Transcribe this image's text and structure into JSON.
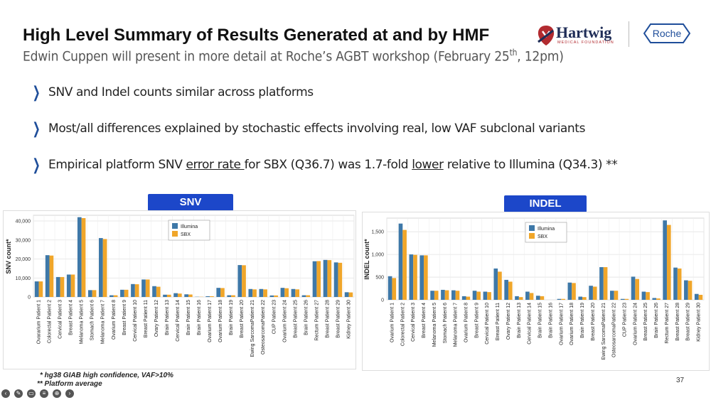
{
  "header": {
    "title": "High Level Summary of Results Generated at and by HMF",
    "subtitle_pre": "Edwin Cuppen will present in more detail at Roche’s AGBT workshop (February 25",
    "subtitle_sup": "th",
    "subtitle_post": ", 12pm)",
    "hartwig_name": "Hartwig",
    "hartwig_sub": "MEDICAL FOUNDATION",
    "roche_name": "Roche"
  },
  "bullets": {
    "b1": "SNV and Indel counts similar across platforms",
    "b2": "Most/all differences explained by stochastic effects involving real, low VAF subclonal variants",
    "b3_a": "Empirical platform SNV ",
    "b3_u1": "error rate ",
    "b3_b": "for SBX (Q36.7) was 1.7-fold ",
    "b3_u2": "lower",
    "b3_c": " relative to Illumina (Q34.3) **"
  },
  "footnotes": {
    "f1": "* hg38 GIAB high confidence, VAF>10%",
    "f2": "** Platform average"
  },
  "page_number": "37",
  "colors": {
    "illumina": "#3e78a8",
    "sbx": "#f0a62a",
    "badge": "#1c47c9"
  },
  "chart_data": [
    {
      "type": "bar",
      "title": "SNV",
      "ylabel": "SNV count*",
      "ylim": [
        0,
        43000
      ],
      "yticks": [
        "0",
        "10,000",
        "20,000",
        "30,000",
        "40,000"
      ],
      "ytick_values": [
        0,
        10000,
        20000,
        30000,
        40000
      ],
      "categories": [
        "Ovararium Patient 1",
        "Colorectal Patient 2",
        "Cervical Patient 3",
        "Breast Patient 4",
        "Melanoma Patient 5",
        "Stomach Patient 6",
        "Melanoma Patient 7",
        "Ovarium Patient 8",
        "Breast Patient 9",
        "Cervical Patient 10",
        "Breast Patient 11",
        "Ovary Patient 12",
        "Brain Patient 13",
        "Cervical Patient 14",
        "Brain Patient 15",
        "Brain Patient 16",
        "Ovarium Patient 17",
        "Ovarium Patient 18",
        "Brain Patient 19",
        "Breast Patient 20",
        "Ewing SarcomaPatient 21",
        "OsteosarcomaPatient 22",
        "CUP Patient 23",
        "Ovarium Patient 24",
        "Breast Patient 25",
        "Brain Patient 26",
        "Rectum Patient 27",
        "Breast Patient 28",
        "Breast Patient 29",
        "Kidney Patient 30"
      ],
      "legend": [
        "Illumina",
        "SBX"
      ],
      "legend_position": "top-right",
      "grid": true,
      "series": [
        {
          "name": "Illumina",
          "values": [
            8200,
            22000,
            10500,
            11800,
            42000,
            3600,
            31000,
            900,
            3800,
            6800,
            9200,
            5700,
            1200,
            2000,
            1400,
            100,
            400,
            4800,
            900,
            16800,
            4200,
            4200,
            800,
            4800,
            4200,
            900,
            18800,
            19500,
            18200,
            2500
          ]
        },
        {
          "name": "SBX",
          "values": [
            8200,
            21800,
            10500,
            11800,
            41500,
            3600,
            30500,
            900,
            3800,
            6700,
            9200,
            5400,
            1200,
            1800,
            1300,
            100,
            400,
            4700,
            900,
            16700,
            4000,
            4000,
            800,
            4600,
            4000,
            900,
            18900,
            19400,
            18000,
            2400
          ]
        }
      ]
    },
    {
      "type": "bar",
      "title": "INDEL",
      "ylabel": "INDEL count*",
      "ylim": [
        0,
        1800
      ],
      "yticks": [
        "0",
        "500",
        "1,000",
        "1,500"
      ],
      "ytick_values": [
        0,
        500,
        1000,
        1500
      ],
      "categories": [
        "Ovarium Patient 1",
        "Colorectal Patient 2",
        "Cervical Patient 3",
        "Breast Patient 4",
        "Melanoma Patient 5",
        "Stomach Patient 6",
        "Melanoma Patient 7",
        "Ovarium Patient 8",
        "Breast Patient 9",
        "Cervical Patient 10",
        "Breast Patient 11",
        "Ovary Patient 12",
        "Brain Patient 13",
        "Cervical Patient 14",
        "Brain Patient 15",
        "Brain Patient 16",
        "Ovarium Patient 17",
        "Ovarium Patient 18",
        "Brain Patient 19",
        "Breast Patient 20",
        "Ewing SarcomaPatient 21",
        "OsteosarcomaPatient 22",
        "CUP Patient 23",
        "Ovarium Patient 24",
        "Breast Patient 25",
        "Brain Patient 26",
        "Rectum Patient 27",
        "Breast Patient 28",
        "Breast Patient 29",
        "Kidney Patient 30"
      ],
      "legend": [
        "Illumina",
        "SBX"
      ],
      "legend_position": "top-left",
      "grid": true,
      "series": [
        {
          "name": "Illumina",
          "values": [
            520,
            1680,
            1000,
            980,
            200,
            220,
            210,
            80,
            200,
            180,
            690,
            440,
            80,
            180,
            90,
            0,
            20,
            380,
            70,
            310,
            720,
            200,
            20,
            510,
            180,
            40,
            1750,
            710,
            430,
            130
          ]
        },
        {
          "name": "SBX",
          "values": [
            480,
            1540,
            990,
            980,
            200,
            210,
            200,
            70,
            180,
            170,
            620,
            400,
            60,
            150,
            80,
            0,
            20,
            370,
            60,
            290,
            720,
            200,
            20,
            460,
            170,
            30,
            1650,
            690,
            420,
            110
          ]
        }
      ]
    }
  ]
}
